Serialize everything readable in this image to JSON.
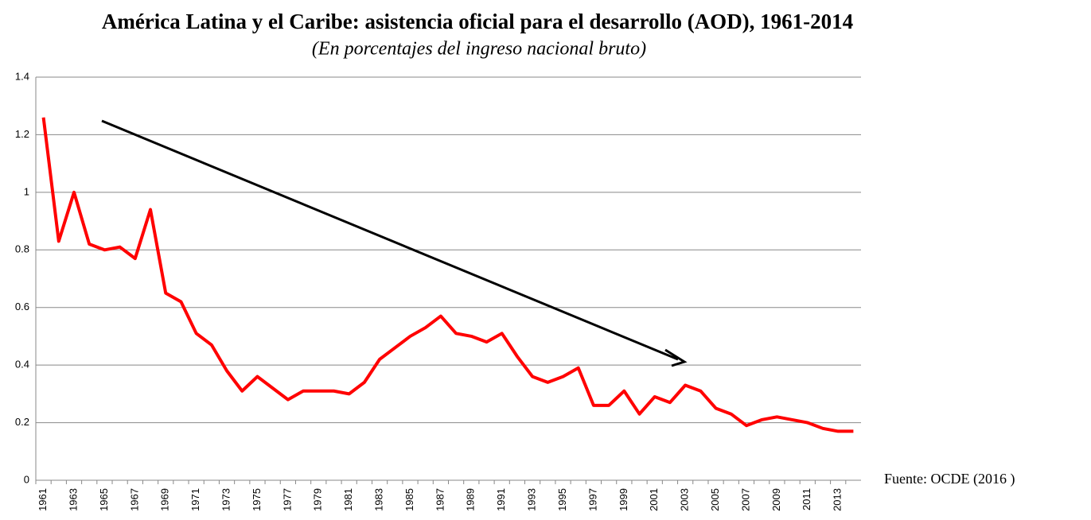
{
  "chart_data": {
    "type": "line",
    "title": "América Latina y el Caribe: asistencia oficial para el desarrollo (AOD), 1961-2014",
    "subtitle": "(En porcentajes del ingreso nacional bruto)",
    "source": "Fuente: OCDE (2016 )",
    "categories": [
      "1961",
      null,
      "1963",
      null,
      "1965",
      null,
      "1967",
      null,
      "1969",
      null,
      "1971",
      null,
      "1973",
      null,
      "1975",
      null,
      "1977",
      null,
      "1979",
      null,
      "1981",
      null,
      "1983",
      null,
      "1985",
      null,
      "1987",
      null,
      "1989",
      null,
      "1991",
      null,
      "1993",
      null,
      "1995",
      null,
      "1997",
      null,
      "1999",
      null,
      "2001",
      null,
      "2003",
      null,
      "2005",
      null,
      "2007",
      null,
      "2009",
      null,
      "2011",
      null,
      "2013",
      null
    ],
    "values": [
      1.26,
      0.83,
      1.0,
      0.82,
      0.8,
      0.81,
      0.77,
      0.94,
      0.65,
      0.62,
      0.51,
      0.47,
      0.38,
      0.31,
      0.36,
      0.32,
      0.28,
      0.31,
      0.31,
      0.31,
      0.3,
      0.34,
      0.42,
      0.46,
      0.5,
      0.53,
      0.57,
      0.51,
      0.5,
      0.48,
      0.51,
      0.43,
      0.36,
      0.34,
      0.36,
      0.39,
      0.26,
      0.26,
      0.31,
      0.23,
      0.29,
      0.27,
      0.33,
      0.31,
      0.25,
      0.23,
      0.19,
      0.21,
      0.22,
      0.21,
      0.2,
      0.18,
      0.17,
      0.17
    ],
    "color": "#ff0000",
    "ylim": [
      0,
      1.4
    ],
    "yticks": [
      0,
      0.2,
      0.4,
      0.6,
      0.8,
      1,
      1.2,
      1.4
    ],
    "grid": true
  }
}
